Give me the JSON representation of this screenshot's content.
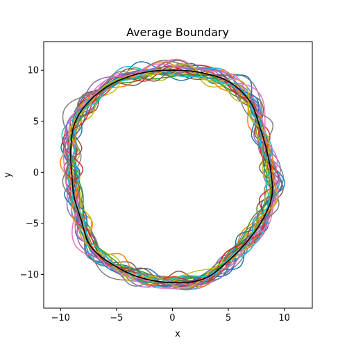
{
  "chart_data": {
    "type": "line",
    "title": "Average Boundary",
    "xlabel": "x",
    "ylabel": "y",
    "xlim": [
      -11.5,
      12.5
    ],
    "ylim": [
      -13.3,
      12.8
    ],
    "xticks": [
      -10,
      -5,
      0,
      5,
      10
    ],
    "yticks": [
      -10,
      -5,
      0,
      5,
      10
    ],
    "grid": false,
    "legend": "none",
    "trial_count": 30,
    "trial_colors": [
      "#1f77b4",
      "#ff7f0e",
      "#2ca02c",
      "#d62728",
      "#9467bd",
      "#8c564b",
      "#e377c2",
      "#7f7f7f",
      "#bcbd22",
      "#17becf"
    ],
    "average_series": {
      "color": "#000000",
      "angles_deg": [
        0,
        15,
        30,
        45,
        60,
        75,
        90,
        105,
        120,
        135,
        150,
        165,
        180,
        195,
        210,
        225,
        240,
        255,
        270,
        285,
        300,
        315,
        330,
        345
      ],
      "radius": [
        8.8,
        8.7,
        9.0,
        9.8,
        10.2,
        10.1,
        10.0,
        10.1,
        10.2,
        10.2,
        10.0,
        9.4,
        9.0,
        9.1,
        9.4,
        10.3,
        10.5,
        10.7,
        10.8,
        10.8,
        10.0,
        9.5,
        9.3,
        9.2
      ]
    }
  }
}
